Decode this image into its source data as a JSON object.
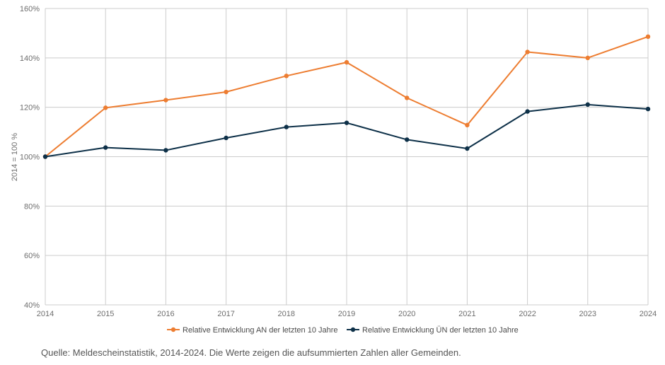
{
  "chart_data": {
    "type": "line",
    "title": "",
    "xlabel": "",
    "ylabel": "2014 = 100 %",
    "categories": [
      "2014",
      "2015",
      "2016",
      "2017",
      "2018",
      "2019",
      "2020",
      "2021",
      "2022",
      "2023",
      "2024"
    ],
    "yticks": [
      "40%",
      "60%",
      "80%",
      "100%",
      "120%",
      "140%",
      "160%"
    ],
    "ylim": [
      40,
      160
    ],
    "grid": true,
    "legend_position": "bottom",
    "series": [
      {
        "name": "Relative Entwicklung AN der letzten 10 Jahre",
        "color": "#ed7d31",
        "values": [
          100,
          119.8,
          122.9,
          126.2,
          132.7,
          138.2,
          123.8,
          112.8,
          142.4,
          140.0,
          148.6
        ]
      },
      {
        "name": "Relative Entwicklung ÜN der letzten 10 Jahre",
        "color": "#0d3048",
        "values": [
          100,
          103.7,
          102.6,
          107.6,
          112.0,
          113.7,
          106.9,
          103.3,
          118.3,
          121.1,
          119.3
        ]
      }
    ]
  },
  "source": "Quelle: Meldescheinstatistik, 2014-2024. Die Werte zeigen die aufsummierten Zahlen aller Gemeinden."
}
